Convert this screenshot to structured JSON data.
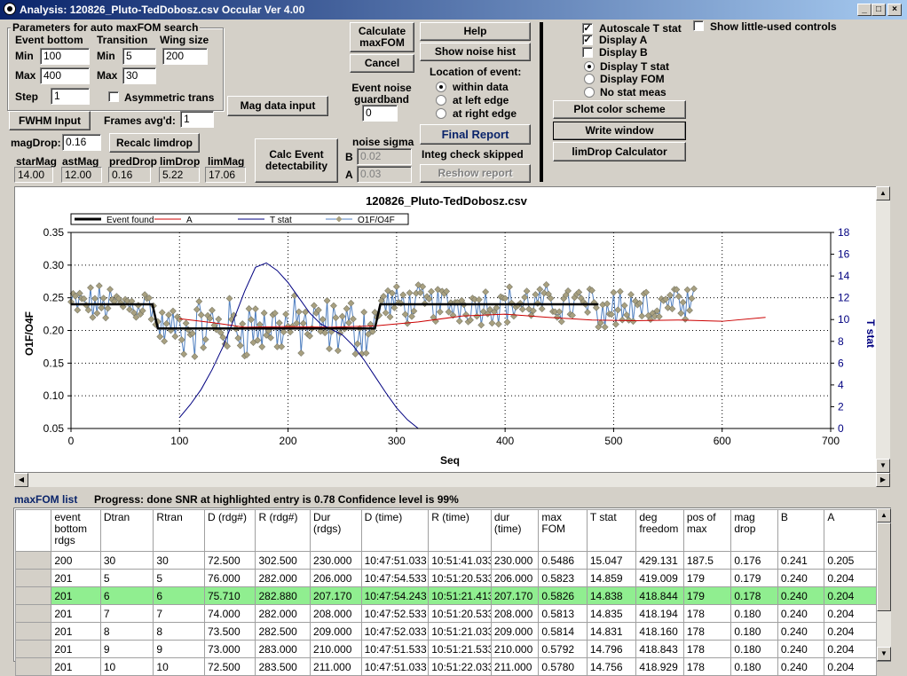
{
  "window": {
    "title": "Analysis: 120826_Pluto-TedDobosz.csv  Occular Ver 4.00",
    "min": "_",
    "max": "□",
    "close": "×"
  },
  "params": {
    "group_title": "Parameters for auto maxFOM search",
    "event_bottom": "Event bottom",
    "transition": "Transition",
    "wing_size": "Wing size",
    "min_label": "Min",
    "max_label": "Max",
    "step_label": "Step",
    "eb_min": "100",
    "eb_max": "400",
    "step": "1",
    "tr_min": "5",
    "tr_max": "30",
    "wing": "200",
    "asym": "Asymmetric trans"
  },
  "fwhm_button": "FWHM Input",
  "frames_label": "Frames avg'd:",
  "frames_value": "1",
  "mag_data_button": "Mag data input",
  "magdrop_label": "magDrop:",
  "magdrop_value": "0.16",
  "recalc_button": "Recalc limdrop",
  "stats": [
    {
      "label": "starMag",
      "value": "14.00"
    },
    {
      "label": "astMag",
      "value": "12.00"
    },
    {
      "label": "predDrop",
      "value": "0.16"
    },
    {
      "label": "limDrop",
      "value": "5.22"
    },
    {
      "label": "limMag",
      "value": "17.06"
    }
  ],
  "calc_event_button": "Calc Event detectability",
  "calc_maxfom_button": "Calculate maxFOM",
  "cancel_button": "Cancel",
  "guardband_label": "Event noise guardband",
  "guardband_value": "0",
  "noise_sigma_label": "noise sigma",
  "b_label": "B",
  "a_label": "A",
  "noise_b": "0.02",
  "noise_a": "0.03",
  "help_button": "Help",
  "noise_hist_button": "Show noise hist",
  "location_label": "Location of event:",
  "location_opts": [
    "within data",
    "at left edge",
    "at right edge"
  ],
  "final_report_button": "Final Report",
  "integ_label": "Integ check skipped",
  "reshow_button": "Reshow report",
  "options": {
    "autoscale": "Autoscale T stat",
    "display_a": "Display A",
    "display_b": "Display B",
    "little_used": "Show little-used controls",
    "stat_opts": [
      "Display T stat",
      "Display FOM",
      "No stat meas"
    ]
  },
  "plot_color_button": "Plot color scheme",
  "write_window_button": "Write window",
  "limdrop_calc_button": "limDrop Calculator",
  "status": {
    "list_label": "maxFOM list",
    "progress": "Progress: done  SNR at highlighted entry is 0.78   Confidence level is 99%"
  },
  "chart_data": {
    "type": "line",
    "title": "120826_Pluto-TedDobosz.csv",
    "xlabel": "Seq",
    "ylabel": "O1F/O4F",
    "y2label": "T stat",
    "xlim": [
      0,
      700
    ],
    "ylim": [
      0.05,
      0.35
    ],
    "y2lim": [
      0,
      18
    ],
    "xticks": [
      "0",
      "100",
      "200",
      "300",
      "400",
      "500",
      "600",
      "700"
    ],
    "yticks": [
      "0.05",
      "0.10",
      "0.15",
      "0.20",
      "0.25",
      "0.30",
      "0.35"
    ],
    "y2ticks": [
      "0",
      "2",
      "4",
      "6",
      "8",
      "10",
      "12",
      "14",
      "16",
      "18"
    ],
    "legend": [
      "Event found",
      "A",
      "T stat",
      "O1F/O4F"
    ],
    "event_found": {
      "x": [
        0,
        75,
        80,
        280,
        285,
        486
      ],
      "y": [
        0.24,
        0.24,
        0.203,
        0.203,
        0.24,
        0.24
      ]
    },
    "a_curve": {
      "x": [
        100,
        130,
        160,
        200,
        240,
        280,
        320,
        360,
        400,
        440,
        480,
        520,
        560,
        600,
        640
      ],
      "y": [
        0.218,
        0.212,
        0.205,
        0.206,
        0.205,
        0.207,
        0.213,
        0.222,
        0.225,
        0.22,
        0.216,
        0.215,
        0.216,
        0.214,
        0.22
      ]
    },
    "t_stat": {
      "x": [
        100,
        110,
        120,
        130,
        140,
        150,
        160,
        170,
        180,
        190,
        200,
        210,
        220,
        230,
        240,
        250,
        260,
        270,
        280,
        290,
        300,
        310,
        320
      ],
      "y": [
        1.0,
        2.2,
        3.6,
        5.4,
        7.5,
        10.0,
        12.6,
        14.8,
        15.2,
        14.5,
        13.4,
        12.0,
        10.6,
        9.6,
        9.1,
        8.6,
        7.6,
        6.3,
        4.8,
        3.3,
        1.9,
        0.8,
        0.0
      ]
    },
    "grid": true
  },
  "table": {
    "headers": [
      "event bottom rdgs",
      "Dtran",
      "Rtran",
      "D (rdg#)",
      "R (rdg#)",
      "Dur (rdgs)",
      "D (time)",
      "R (time)",
      "dur (time)",
      "max FOM",
      "T stat",
      "deg freedom",
      "pos of max",
      "mag drop",
      "B",
      "A"
    ],
    "rows": [
      [
        "200",
        "30",
        "30",
        "72.500",
        "302.500",
        "230.000",
        "10:47:51.033",
        "10:51:41.033",
        "230.000",
        "0.5486",
        "15.047",
        "429.131",
        "187.5",
        "0.176",
        "0.241",
        "0.205"
      ],
      [
        "201",
        "5",
        "5",
        "76.000",
        "282.000",
        "206.000",
        "10:47:54.533",
        "10:51:20.533",
        "206.000",
        "0.5823",
        "14.859",
        "419.009",
        "179",
        "0.179",
        "0.240",
        "0.204"
      ],
      [
        "201",
        "6",
        "6",
        "75.710",
        "282.880",
        "207.170",
        "10:47:54.243",
        "10:51:21.413",
        "207.170",
        "0.5826",
        "14.838",
        "418.844",
        "179",
        "0.178",
        "0.240",
        "0.204"
      ],
      [
        "201",
        "7",
        "7",
        "74.000",
        "282.000",
        "208.000",
        "10:47:52.533",
        "10:51:20.533",
        "208.000",
        "0.5813",
        "14.835",
        "418.194",
        "178",
        "0.180",
        "0.240",
        "0.204"
      ],
      [
        "201",
        "8",
        "8",
        "73.500",
        "282.500",
        "209.000",
        "10:47:52.033",
        "10:51:21.033",
        "209.000",
        "0.5814",
        "14.831",
        "418.160",
        "178",
        "0.180",
        "0.240",
        "0.204"
      ],
      [
        "201",
        "9",
        "9",
        "73.000",
        "283.000",
        "210.000",
        "10:47:51.533",
        "10:51:21.533",
        "210.000",
        "0.5792",
        "14.796",
        "418.843",
        "178",
        "0.180",
        "0.240",
        "0.204"
      ],
      [
        "201",
        "10",
        "10",
        "72.500",
        "283.500",
        "211.000",
        "10:47:51.033",
        "10:51:22.033",
        "211.000",
        "0.5780",
        "14.756",
        "418.929",
        "178",
        "0.180",
        "0.240",
        "0.204"
      ]
    ],
    "highlight_row": 2
  },
  "colors": {
    "event": "#000000",
    "a": "#cc0000",
    "tstat": "#000080",
    "ratio_line": "#4f7fc0",
    "ratio_marker": "#a8a080",
    "highlight": "#90ee90"
  }
}
